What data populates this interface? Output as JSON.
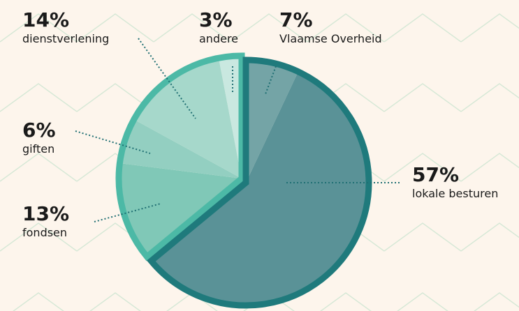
{
  "chart_data": {
    "type": "pie",
    "categories": [
      "Vlaamse Overheid",
      "lokale besturen",
      "fondsen",
      "giften",
      "dienstverlening",
      "andere"
    ],
    "values": [
      7,
      57,
      13,
      6,
      14,
      3
    ],
    "value_labels": [
      "7%",
      "57%",
      "13%",
      "6%",
      "14%",
      "3%"
    ],
    "colors": [
      "#74a4a6",
      "#5a9297",
      "#80c8b7",
      "#93cfc1",
      "#a6d8cb",
      "#c9e8e0"
    ],
    "edge_colors": [
      "#1f7a7c",
      "#1f7a7c",
      "#4cb9a6",
      "#4cb9a6",
      "#4cb9a6",
      "#4cb9a6"
    ]
  }
}
